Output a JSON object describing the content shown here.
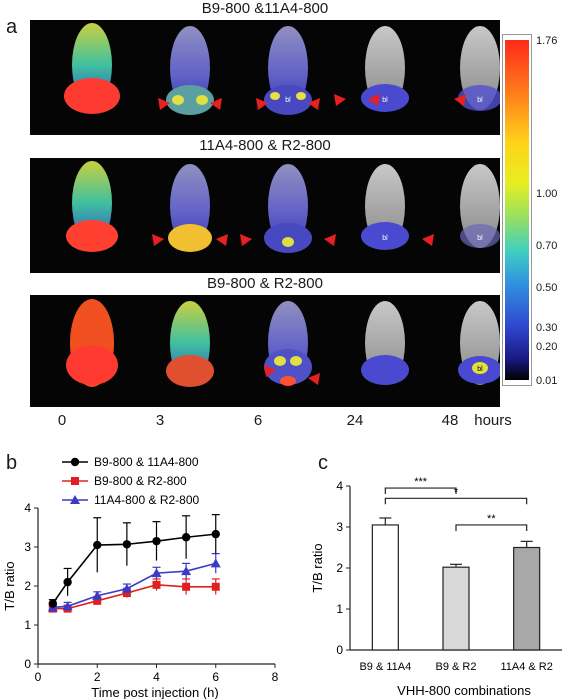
{
  "panels": {
    "a": "a",
    "b": "b",
    "c": "c"
  },
  "panel_a": {
    "rows": [
      {
        "title": "B9-800 &11A4-800"
      },
      {
        "title": "11A4-800 & R2-800"
      },
      {
        "title": "B9-800 & R2-800"
      }
    ],
    "time_labels": [
      "0",
      "3",
      "6",
      "24",
      "48"
    ],
    "time_unit": "hours",
    "bladder_label": "bl",
    "colorbar_ticks": [
      "1.76",
      "1.00",
      "0.70",
      "0.50",
      "0.30",
      "0.20",
      "0.01"
    ]
  },
  "chart_data": [
    {
      "type": "line",
      "panel": "b",
      "xlabel": "Time post injection (h)",
      "ylabel": "T/B ratio",
      "xlim": [
        0,
        8
      ],
      "ylim": [
        0,
        4
      ],
      "xticks": [
        "0",
        "2",
        "4",
        "6",
        "8"
      ],
      "yticks": [
        "0",
        "1",
        "2",
        "3",
        "4"
      ],
      "x": [
        0.5,
        1,
        2,
        3,
        4,
        5,
        6
      ],
      "series": [
        {
          "name": "B9-800 & 11A4-800",
          "color": "#000000",
          "marker": "circle",
          "values": [
            1.55,
            2.1,
            3.05,
            3.07,
            3.15,
            3.25,
            3.33
          ],
          "errors": [
            0.1,
            0.35,
            0.7,
            0.55,
            0.5,
            0.55,
            0.5
          ]
        },
        {
          "name": "B9-800 & R2-800",
          "color": "#e02020",
          "marker": "square",
          "values": [
            1.42,
            1.42,
            1.62,
            1.82,
            2.03,
            1.98,
            1.98
          ],
          "errors": [
            0.08,
            0.08,
            0.1,
            0.12,
            0.15,
            0.2,
            0.2
          ]
        },
        {
          "name": "11A4-800 & R2-800",
          "color": "#3a3ac8",
          "marker": "triangle",
          "values": [
            1.45,
            1.48,
            1.75,
            1.93,
            2.33,
            2.38,
            2.58
          ],
          "errors": [
            0.08,
            0.1,
            0.1,
            0.12,
            0.15,
            0.2,
            0.25
          ]
        }
      ]
    },
    {
      "type": "bar",
      "panel": "c",
      "xlabel": "VHH-800 combinations",
      "ylabel": "T/B ratio",
      "ylim": [
        0,
        4
      ],
      "yticks": [
        "0",
        "1",
        "2",
        "3",
        "4"
      ],
      "categories": [
        "B9 & 11A4",
        "B9 & R2",
        "11A4 & R2"
      ],
      "values": [
        3.05,
        2.02,
        2.5
      ],
      "errors": [
        0.17,
        0.07,
        0.15
      ],
      "colors": [
        "#ffffff",
        "#d8d8d8",
        "#a8a8a8"
      ],
      "significance": [
        "***",
        "*",
        "**"
      ]
    }
  ]
}
